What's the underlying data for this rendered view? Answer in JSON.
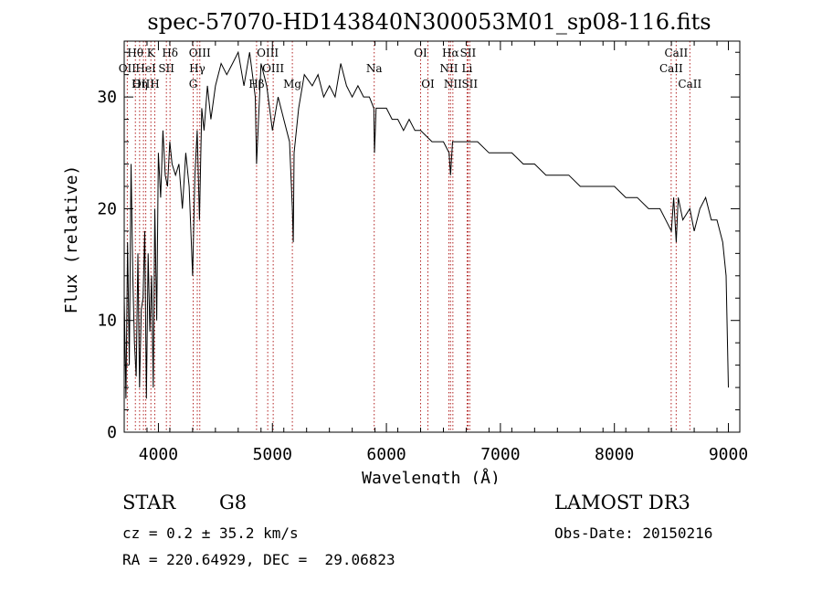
{
  "chart_data": {
    "type": "line",
    "title": "spec-57070-HD143840N300053M01_sp08-116.fits",
    "xlabel": "Wavelength (Å)",
    "ylabel": "Flux (relative)",
    "xlim": [
      3700,
      9100
    ],
    "ylim": [
      0,
      35
    ],
    "xticks": [
      4000,
      5000,
      6000,
      7000,
      8000,
      9000
    ],
    "yticks": [
      0,
      10,
      20,
      30
    ],
    "grid": false,
    "series": [
      {
        "x": [
          3700,
          3715,
          3730,
          3745,
          3760,
          3775,
          3790,
          3805,
          3820,
          3835,
          3850,
          3865,
          3880,
          3895,
          3910,
          3925,
          3940,
          3955,
          3968,
          3985,
          4000,
          4020,
          4040,
          4060,
          4080,
          4100,
          4120,
          4150,
          4180,
          4210,
          4240,
          4270,
          4300,
          4320,
          4340,
          4360,
          4380,
          4400,
          4430,
          4460,
          4500,
          4550,
          4600,
          4650,
          4700,
          4750,
          4800,
          4850,
          4861,
          4900,
          4950,
          5000,
          5050,
          5100,
          5150,
          5175,
          5183,
          5190,
          5230,
          5280,
          5350,
          5400,
          5450,
          5500,
          5550,
          5600,
          5650,
          5700,
          5750,
          5800,
          5850,
          5890,
          5895,
          5910,
          5950,
          6000,
          6050,
          6100,
          6150,
          6200,
          6250,
          6300,
          6400,
          6450,
          6500,
          6550,
          6563,
          6580,
          6620,
          6700,
          6800,
          6900,
          7000,
          7100,
          7200,
          7300,
          7400,
          7500,
          7600,
          7700,
          7800,
          7900,
          8000,
          8100,
          8200,
          8300,
          8400,
          8450,
          8500,
          8520,
          8542,
          8560,
          8600,
          8662,
          8700,
          8750,
          8800,
          8850,
          8900,
          8950,
          8980,
          9000
        ],
        "values": [
          12,
          3,
          17,
          6,
          24,
          14,
          8,
          5,
          16,
          4,
          11,
          12,
          18,
          3,
          16,
          9,
          14,
          4,
          20,
          10,
          25,
          21,
          27,
          23,
          22,
          26,
          24,
          23,
          24,
          20,
          25,
          22,
          14,
          23,
          27,
          19,
          29,
          27,
          31,
          28,
          31,
          33,
          32,
          33,
          34,
          31,
          34,
          30,
          24,
          33,
          31,
          27,
          30,
          28,
          26,
          20,
          17,
          25,
          29,
          32,
          31,
          32,
          30,
          31,
          30,
          33,
          31,
          30,
          31,
          30,
          30,
          29,
          25,
          29,
          29,
          29,
          28,
          28,
          27,
          28,
          27,
          27,
          26,
          26,
          26,
          25,
          23,
          26,
          26,
          26,
          26,
          25,
          25,
          25,
          24,
          24,
          23,
          23,
          23,
          22,
          22,
          22,
          22,
          21,
          21,
          20,
          20,
          19,
          18,
          21,
          17,
          21,
          19,
          20,
          18,
          20,
          21,
          19,
          19,
          17,
          14,
          4
        ]
      }
    ],
    "lines": [
      {
        "label": "Hθ",
        "x": 3798,
        "row": 0
      },
      {
        "label": "OII",
        "x": 3727,
        "row": 1
      },
      {
        "label": "OIII",
        "x": 3869,
        "row": 2
      },
      {
        "label": "HeI",
        "x": 3889,
        "row": 1
      },
      {
        "label": "Hη",
        "x": 3835,
        "row": 2
      },
      {
        "label": "K",
        "x": 3934,
        "row": 0
      },
      {
        "label": "SII",
        "x": 4070,
        "row": 1
      },
      {
        "label": "H",
        "x": 3968,
        "row": 2
      },
      {
        "label": "Hδ",
        "x": 4102,
        "row": 0
      },
      {
        "label": "OIII",
        "x": 4363,
        "row": 0
      },
      {
        "label": "Hγ",
        "x": 4341,
        "row": 1
      },
      {
        "label": "G",
        "x": 4305,
        "row": 2
      },
      {
        "label": "Hβ",
        "x": 4861,
        "row": 2
      },
      {
        "label": "OIII",
        "x": 4959,
        "row": 0
      },
      {
        "label": "OIII",
        "x": 5007,
        "row": 1
      },
      {
        "label": "Mg",
        "x": 5175,
        "row": 2
      },
      {
        "label": "Na",
        "x": 5893,
        "row": 1
      },
      {
        "label": "OI",
        "x": 6300,
        "row": 0
      },
      {
        "label": "OI",
        "x": 6364,
        "row": 2
      },
      {
        "label": "Hα",
        "x": 6563,
        "row": 0
      },
      {
        "label": "NII",
        "x": 6548,
        "row": 1
      },
      {
        "label": "NII",
        "x": 6583,
        "row": 2
      },
      {
        "label": "SII",
        "x": 6716,
        "row": 0
      },
      {
        "label": "Li",
        "x": 6708,
        "row": 1
      },
      {
        "label": "SII",
        "x": 6731,
        "row": 2
      },
      {
        "label": "CaII",
        "x": 8542,
        "row": 0
      },
      {
        "label": "CaII",
        "x": 8498,
        "row": 1
      },
      {
        "label": "CaII",
        "x": 8662,
        "row": 2
      }
    ]
  },
  "info": {
    "class": "STAR",
    "subclass": "G8",
    "survey": "LAMOST DR3",
    "cz": "cz = 0.2 ± 35.2 km/s",
    "obsdate": "Obs-Date: 20150216",
    "coords": "RA = 220.64929, DEC =  29.06823"
  },
  "colors": {
    "spectrum": "#000000",
    "line_markers": "#b22222"
  }
}
